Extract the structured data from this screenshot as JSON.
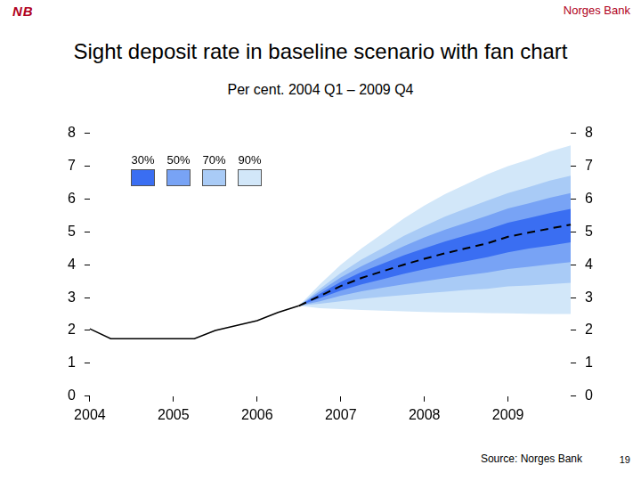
{
  "header": {
    "logo": "NB",
    "organization": "Norges Bank"
  },
  "chart_data": {
    "type": "line",
    "title": "Sight deposit rate in baseline scenario with fan chart",
    "subtitle": "Per cent. 2004 Q1 – 2009 Q4",
    "source": "Source: Norges Bank",
    "categories": [
      "2004",
      null,
      null,
      null,
      "2005",
      null,
      null,
      null,
      "2006",
      null,
      null,
      null,
      "2007",
      null,
      null,
      null,
      "2008",
      null,
      null,
      null,
      "2009",
      null,
      null,
      null
    ],
    "series": [
      {
        "color": "#000000",
        "line_style": "solid",
        "marker": "none",
        "values": [
          2.05,
          1.75,
          1.75,
          1.75,
          1.75,
          1.75,
          2.0,
          2.15,
          2.3,
          2.55,
          2.75,
          null,
          null,
          null,
          null,
          null,
          null,
          null,
          null,
          null,
          null,
          null,
          null,
          null
        ]
      },
      {
        "color": "#000000",
        "line_style": "dashed",
        "marker": "none",
        "values": [
          null,
          null,
          null,
          null,
          null,
          null,
          null,
          null,
          null,
          null,
          2.75,
          3.05,
          3.35,
          3.6,
          3.8,
          4.0,
          4.18,
          4.35,
          4.5,
          4.65,
          4.85,
          4.98,
          5.1,
          5.22
        ]
      }
    ],
    "bands": [
      {
        "name": "30%",
        "color": "#3a6ef2",
        "lower": [
          null,
          null,
          null,
          null,
          null,
          null,
          null,
          null,
          null,
          null,
          2.75,
          2.98,
          3.21,
          3.4,
          3.56,
          3.72,
          3.86,
          3.99,
          4.11,
          4.23,
          4.38,
          4.49,
          4.58,
          4.68
        ],
        "upper": [
          null,
          null,
          null,
          null,
          null,
          null,
          null,
          null,
          null,
          null,
          2.75,
          3.12,
          3.48,
          3.78,
          4.03,
          4.28,
          4.5,
          4.71,
          4.89,
          5.07,
          5.28,
          5.42,
          5.57,
          5.7
        ]
      },
      {
        "name": "50%",
        "color": "#78a3f5",
        "lower": [
          null,
          null,
          null,
          null,
          null,
          null,
          null,
          null,
          null,
          null,
          2.75,
          2.89,
          3.06,
          3.19,
          3.3,
          3.4,
          3.5,
          3.59,
          3.68,
          3.76,
          3.87,
          3.94,
          4.01,
          4.08
        ],
        "upper": [
          null,
          null,
          null,
          null,
          null,
          null,
          null,
          null,
          null,
          null,
          2.75,
          3.19,
          3.61,
          3.96,
          4.26,
          4.56,
          4.83,
          5.07,
          5.28,
          5.49,
          5.71,
          5.87,
          6.04,
          6.18
        ]
      },
      {
        "name": "70%",
        "color": "#a9cbf6",
        "lower": [
          null,
          null,
          null,
          null,
          null,
          null,
          null,
          null,
          null,
          null,
          2.75,
          2.81,
          2.89,
          2.96,
          3.02,
          3.08,
          3.13,
          3.18,
          3.23,
          3.27,
          3.34,
          3.37,
          3.41,
          3.45
        ],
        "upper": [
          null,
          null,
          null,
          null,
          null,
          null,
          null,
          null,
          null,
          null,
          2.75,
          3.27,
          3.75,
          4.16,
          4.51,
          4.87,
          5.18,
          5.47,
          5.71,
          5.95,
          6.18,
          6.36,
          6.56,
          6.71
        ]
      },
      {
        "name": "90%",
        "color": "#d2e7f9",
        "lower": [
          null,
          null,
          null,
          null,
          null,
          null,
          null,
          null,
          null,
          null,
          2.75,
          2.68,
          2.65,
          2.62,
          2.6,
          2.58,
          2.56,
          2.55,
          2.54,
          2.53,
          2.52,
          2.51,
          2.5,
          2.5
        ],
        "upper": [
          null,
          null,
          null,
          null,
          null,
          null,
          null,
          null,
          null,
          null,
          2.75,
          3.4,
          4.0,
          4.5,
          4.95,
          5.4,
          5.8,
          6.15,
          6.45,
          6.75,
          7.0,
          7.2,
          7.45,
          7.63
        ]
      }
    ],
    "ylim": [
      0,
      8
    ],
    "yticks": [
      0,
      1,
      2,
      3,
      4,
      5,
      6,
      7,
      8
    ],
    "y2lim": [
      0,
      8
    ],
    "y2ticks": [
      0,
      1,
      2,
      3,
      4,
      5,
      6,
      7,
      8
    ],
    "grid": false,
    "legend": "top-left"
  },
  "page_number": 19
}
